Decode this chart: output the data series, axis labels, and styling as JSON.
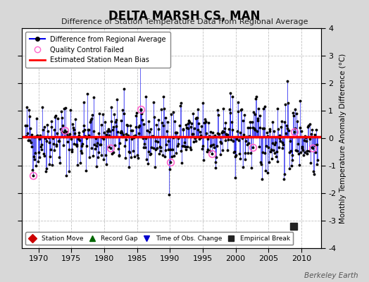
{
  "title": "DELTA MARSH CS, MAN",
  "subtitle": "Difference of Station Temperature Data from Regional Average",
  "ylabel": "Monthly Temperature Anomaly Difference (°C)",
  "xlabel_years": [
    1970,
    1975,
    1980,
    1985,
    1990,
    1995,
    2000,
    2005,
    2010
  ],
  "ylim": [
    -4,
    4
  ],
  "xlim": [
    1967.5,
    2013.0
  ],
  "mean_bias": 0.05,
  "fig_bg_color": "#d8d8d8",
  "plot_bg_color": "#ffffff",
  "line_color": "#0000ee",
  "fill_color": "#aaaaff",
  "bias_color": "#ff0000",
  "dot_color": "#000000",
  "qc_color": "#ff66cc",
  "empirical_break_year": 2008.8,
  "empirical_break_value": -3.2,
  "watermark": "Berkeley Earth",
  "seed": 42,
  "start_year": 1968.0,
  "end_year": 2012.5,
  "qc_indices": [
    14,
    72,
    155,
    210,
    265,
    340,
    415,
    490,
    524
  ],
  "yticks_left": [
    -3,
    -2,
    -1,
    0,
    1,
    2,
    3
  ],
  "yticks_right": [
    -4,
    -3,
    -2,
    -1,
    0,
    1,
    2,
    3,
    4
  ]
}
